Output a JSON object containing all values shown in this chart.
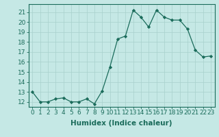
{
  "x": [
    0,
    1,
    2,
    3,
    4,
    5,
    6,
    7,
    8,
    9,
    10,
    11,
    12,
    13,
    14,
    15,
    16,
    17,
    18,
    19,
    20,
    21,
    22,
    23
  ],
  "y": [
    13,
    12,
    12,
    12.3,
    12.4,
    12,
    12,
    12.3,
    11.8,
    13.1,
    15.5,
    18.3,
    18.6,
    21.2,
    20.5,
    19.5,
    21.2,
    20.5,
    20.2,
    20.2,
    19.3,
    17.2,
    16.5,
    16.6
  ],
  "line_color": "#1a6b5a",
  "marker": "D",
  "marker_size": 2.2,
  "bg_color": "#c5e8e5",
  "grid_color": "#a8d0cc",
  "grid_minor_color": "#b8dcd8",
  "xlabel": "Humidex (Indice chaleur)",
  "ylim": [
    11.5,
    21.8
  ],
  "xlim": [
    -0.5,
    23.5
  ],
  "yticks": [
    12,
    13,
    14,
    15,
    16,
    17,
    18,
    19,
    20,
    21
  ],
  "xticks": [
    0,
    1,
    2,
    3,
    4,
    5,
    6,
    7,
    8,
    9,
    10,
    11,
    12,
    13,
    14,
    15,
    16,
    17,
    18,
    19,
    20,
    21,
    22,
    23
  ],
  "tick_label_color": "#1a6b5a",
  "label_color": "#1a6b5a",
  "font_size": 6.5,
  "xlabel_fontsize": 7.5
}
